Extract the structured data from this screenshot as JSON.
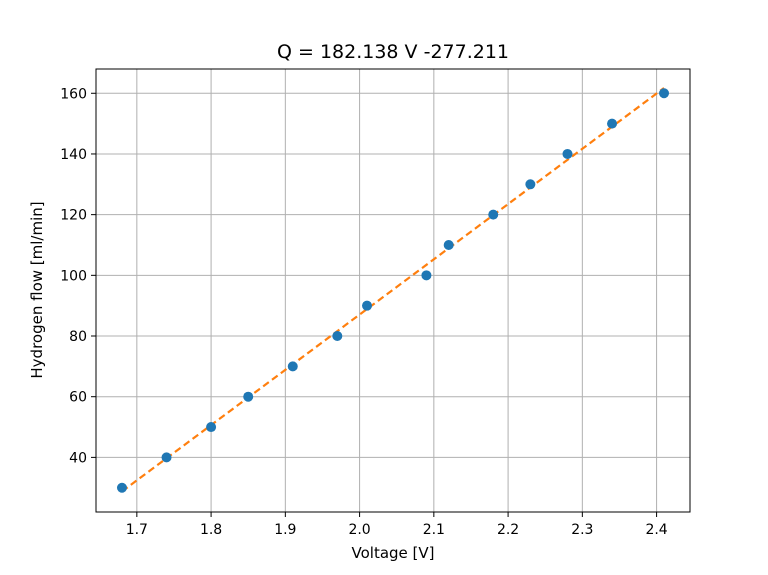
{
  "chart_data": {
    "type": "scatter",
    "title": "Q = 182.138 V -277.211",
    "xlabel": "Voltage [V]",
    "ylabel": "Hydrogen flow [ml/min]",
    "xlim": [
      1.645,
      2.445
    ],
    "ylim": [
      22,
      168
    ],
    "xticks": [
      1.7,
      1.8,
      1.9,
      2.0,
      2.1,
      2.2,
      2.3,
      2.4
    ],
    "yticks": [
      40,
      60,
      80,
      100,
      120,
      140,
      160
    ],
    "grid": true,
    "series": [
      {
        "type": "scatter",
        "color": "#1f77b4",
        "x": [
          1.68,
          1.74,
          1.8,
          1.85,
          1.91,
          1.97,
          2.01,
          2.09,
          2.12,
          2.18,
          2.23,
          2.28,
          2.34,
          2.41
        ],
        "y": [
          30,
          40,
          50,
          60,
          70,
          80,
          90,
          100,
          110,
          120,
          130,
          140,
          150,
          160
        ]
      },
      {
        "type": "line",
        "style": "dashed",
        "color": "#ff7f0e",
        "slope": 182.138,
        "intercept": -277.211,
        "x_range": [
          1.68,
          2.41
        ]
      }
    ]
  }
}
